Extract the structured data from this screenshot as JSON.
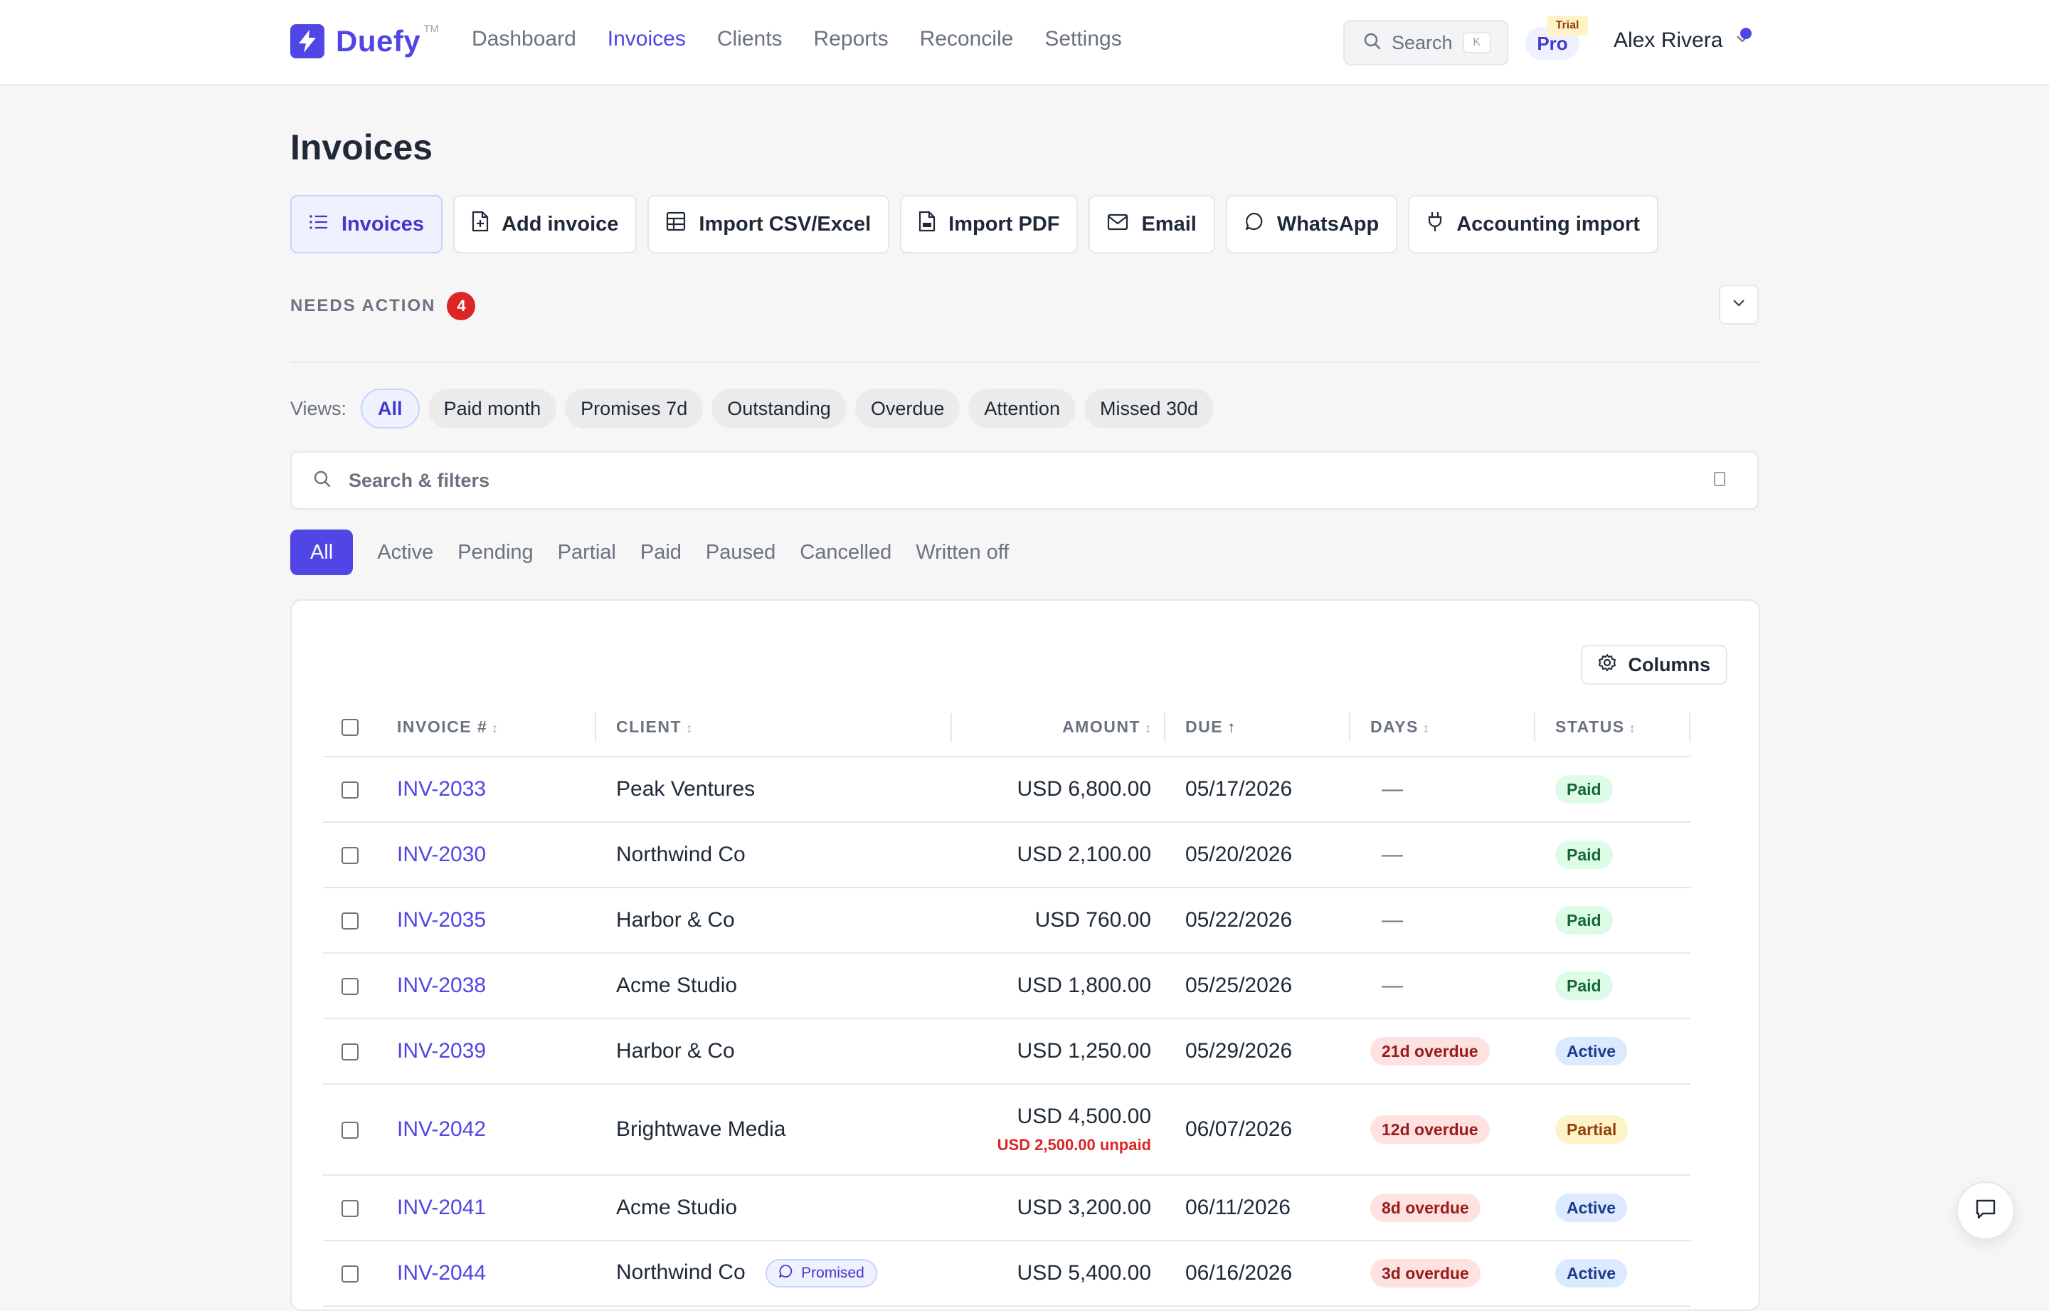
{
  "brand": {
    "name": "Duefy",
    "tm": "TM",
    "accent": "#4f46e5"
  },
  "nav": [
    {
      "label": "Dashboard",
      "active": false
    },
    {
      "label": "Invoices",
      "active": true
    },
    {
      "label": "Clients",
      "active": false
    },
    {
      "label": "Reports",
      "active": false
    },
    {
      "label": "Reconcile",
      "active": false
    },
    {
      "label": "Settings",
      "active": false
    }
  ],
  "header": {
    "search_label": "Search",
    "search_shortcut": "K",
    "plan": "Pro",
    "plan_badge": "Trial",
    "user_name": "Alex Rivera"
  },
  "page": {
    "title": "Invoices"
  },
  "actions": [
    {
      "label": "Invoices",
      "icon": "list-icon",
      "active": true
    },
    {
      "label": "Add invoice",
      "icon": "file-plus-icon"
    },
    {
      "label": "Import CSV/Excel",
      "icon": "table-icon"
    },
    {
      "label": "Import PDF",
      "icon": "pdf-file-icon"
    },
    {
      "label": "Email",
      "icon": "mail-icon"
    },
    {
      "label": "WhatsApp",
      "icon": "chat-bubble-icon"
    },
    {
      "label": "Accounting import",
      "icon": "plug-icon"
    }
  ],
  "needs_action": {
    "label": "NEEDS ACTION",
    "count": "4"
  },
  "views": {
    "label": "Views:",
    "items": [
      "All",
      "Paid month",
      "Promises 7d",
      "Outstanding",
      "Overdue",
      "Attention",
      "Missed 30d"
    ],
    "selected": "All"
  },
  "filter": {
    "placeholder": "Search & filters"
  },
  "status_tabs": {
    "items": [
      "All",
      "Active",
      "Pending",
      "Partial",
      "Paid",
      "Paused",
      "Cancelled",
      "Written off"
    ],
    "selected": "All"
  },
  "table": {
    "columns_button": "Columns",
    "headers": {
      "invoice": "INVOICE #",
      "client": "CLIENT",
      "amount": "AMOUNT",
      "due": "DUE",
      "days": "DAYS",
      "status": "STATUS"
    },
    "sort": {
      "column": "due",
      "direction": "↑"
    },
    "rows": [
      {
        "invoice": "INV-2033",
        "client": "Peak Ventures",
        "amount": "USD 6,800.00",
        "due": "05/17/2026",
        "days": "—",
        "status": "Paid"
      },
      {
        "invoice": "INV-2030",
        "client": "Northwind Co",
        "amount": "USD 2,100.00",
        "due": "05/20/2026",
        "days": "—",
        "status": "Paid"
      },
      {
        "invoice": "INV-2035",
        "client": "Harbor & Co",
        "amount": "USD 760.00",
        "due": "05/22/2026",
        "days": "—",
        "status": "Paid"
      },
      {
        "invoice": "INV-2038",
        "client": "Acme Studio",
        "amount": "USD 1,800.00",
        "due": "05/25/2026",
        "days": "—",
        "status": "Paid"
      },
      {
        "invoice": "INV-2039",
        "client": "Harbor & Co",
        "amount": "USD 1,250.00",
        "due": "05/29/2026",
        "days": "21d overdue",
        "status": "Active"
      },
      {
        "invoice": "INV-2042",
        "client": "Brightwave Media",
        "amount": "USD 4,500.00",
        "amount_note": "USD 2,500.00 unpaid",
        "due": "06/07/2026",
        "days": "12d overdue",
        "status": "Partial"
      },
      {
        "invoice": "INV-2041",
        "client": "Acme Studio",
        "amount": "USD 3,200.00",
        "due": "06/11/2026",
        "days": "8d overdue",
        "status": "Active"
      },
      {
        "invoice": "INV-2044",
        "client": "Northwind Co",
        "client_tag": "Promised",
        "amount": "USD 5,400.00",
        "due": "06/16/2026",
        "days": "3d overdue",
        "status": "Active"
      }
    ]
  },
  "status_colors": {
    "Paid": "#dcfce7",
    "Active": "#dbeafe",
    "Partial": "#fef3c7",
    "overdue": "#fee2e2"
  }
}
